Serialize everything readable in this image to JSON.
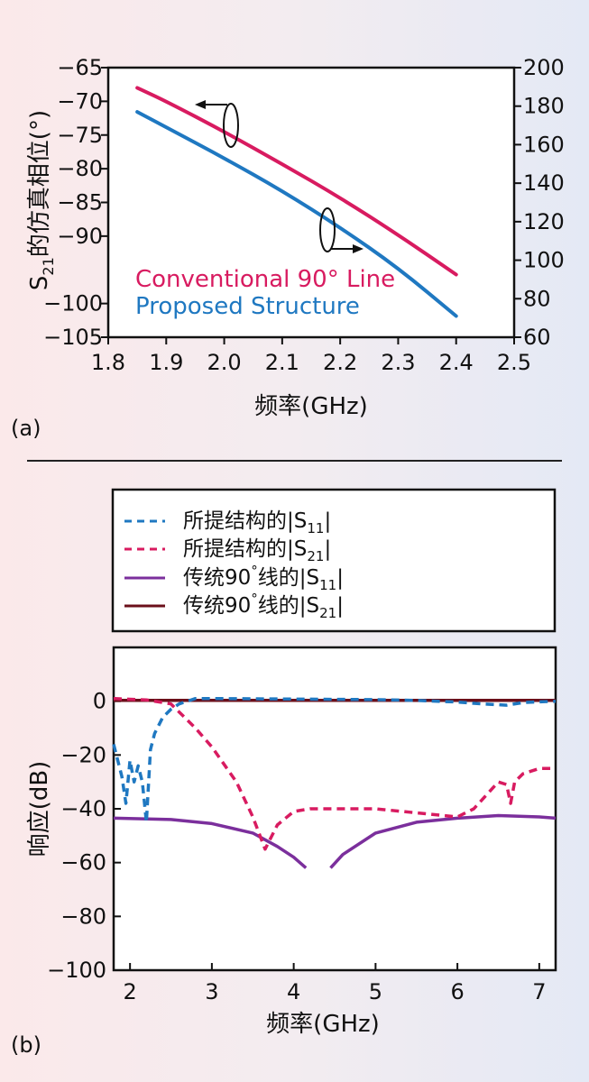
{
  "chart_data": [
    {
      "panel_label": "(a)",
      "type": "line",
      "xlabel": "频率(GHz)",
      "ylabel_left": {
        "pre": "S",
        "sub": "21",
        "post": "的仿真相位(°)"
      },
      "xlim": [
        1.8,
        2.5
      ],
      "ylim_left": [
        -105,
        -65
      ],
      "ylim_right": [
        60,
        200
      ],
      "xticks": [
        1.8,
        1.9,
        2.0,
        2.1,
        2.2,
        2.3,
        2.4,
        2.5
      ],
      "xtick_labels": [
        "1.8",
        "1.9",
        "2.0",
        "2.1",
        "2.2",
        "2.3",
        "2.4",
        "2.5"
      ],
      "yticks_left": [
        -65,
        -70,
        -75,
        -80,
        -85,
        -90,
        -100,
        -105
      ],
      "ytick_labels_left": [
        "−65",
        "−70",
        "−75",
        "−80",
        "−85",
        "−90",
        "−100",
        "−105"
      ],
      "yticks_right": [
        200,
        180,
        160,
        140,
        120,
        100,
        80,
        60
      ],
      "ytick_labels_right": [
        "200",
        "180",
        "160",
        "140",
        "120",
        "100",
        "80",
        "60"
      ],
      "series": [
        {
          "name": "Conventional 90° Line",
          "color": "#d81b60",
          "axis": "left",
          "x": [
            1.85,
            1.9,
            2.0,
            2.1,
            2.2,
            2.3,
            2.4
          ],
          "y": [
            -68.0,
            -70.0,
            -74.5,
            -79.3,
            -84.3,
            -89.8,
            -95.7
          ]
        },
        {
          "name": "Proposed Structure",
          "color": "#1f78c1",
          "axis": "right",
          "x": [
            1.85,
            1.9,
            2.0,
            2.1,
            2.2,
            2.3,
            2.4
          ],
          "y": [
            177,
            169,
            153,
            136,
            117,
            96,
            71
          ]
        }
      ],
      "grid": false
    },
    {
      "panel_label": "(b)",
      "type": "line",
      "xlabel": "频率(GHz)",
      "ylabel": "响应(dB)",
      "xlim": [
        1.8,
        7.2
      ],
      "ylim": [
        -100,
        20
      ],
      "xticks": [
        2,
        3,
        4,
        5,
        6,
        7
      ],
      "xtick_labels": [
        "2",
        "3",
        "4",
        "5",
        "6",
        "7"
      ],
      "yticks": [
        0,
        -20,
        -40,
        -60,
        -80,
        -100
      ],
      "ytick_labels": [
        "0",
        "−20",
        "−40",
        "−60",
        "−80",
        "−100"
      ],
      "legend_position": "above plot",
      "series": [
        {
          "name": {
            "pre": "所提结构的|S",
            "sub": "11",
            "post": "|"
          },
          "color": "#1f78c1",
          "style": "dashed",
          "x": [
            1.8,
            1.9,
            1.95,
            2.0,
            2.05,
            2.1,
            2.15,
            2.2,
            2.25,
            2.3,
            2.4,
            2.5,
            2.6,
            2.7,
            2.8,
            3.0,
            4.0,
            5.0,
            5.5,
            6.0,
            6.3,
            6.6,
            6.8,
            7.2
          ],
          "y": [
            -16,
            -28,
            -38,
            -22,
            -30,
            -24,
            -30,
            -45,
            -18,
            -12,
            -6,
            -3,
            -1,
            0,
            1,
            1,
            0.8,
            0.6,
            0.3,
            -0.3,
            -1,
            -1.5,
            -0.5,
            0
          ]
        },
        {
          "name": {
            "pre": "所提结构的|S",
            "sub": "21",
            "post": "|"
          },
          "color": "#d81b60",
          "style": "dashed",
          "x": [
            1.8,
            2.2,
            2.5,
            2.8,
            3.0,
            3.3,
            3.5,
            3.65,
            3.8,
            4.0,
            4.2,
            4.5,
            5.0,
            5.5,
            6.0,
            6.2,
            6.5,
            6.6,
            6.65,
            6.7,
            6.8,
            7.0,
            7.2
          ],
          "y": [
            1,
            0.5,
            -1,
            -10,
            -17,
            -30,
            -43,
            -55,
            -46,
            -41,
            -40,
            -40,
            -40,
            -41.5,
            -43,
            -40,
            -30,
            -31,
            -38,
            -30,
            -27,
            -25,
            -25
          ]
        },
        {
          "name": {
            "pre": "传统90",
            "sup": "°",
            "post": "线的|S",
            "sub": "11",
            "post2": "|"
          },
          "color": "#7b2f9c",
          "style": "solid",
          "x": [
            1.8,
            2.5,
            3.0,
            3.5,
            3.8,
            4.0,
            4.15,
            null,
            4.45,
            4.6,
            5.0,
            5.5,
            6.0,
            6.5,
            7.0,
            7.2
          ],
          "y": [
            -43.5,
            -44,
            -45.5,
            -49,
            -54,
            -58,
            -62,
            null,
            -62,
            -57,
            -49,
            -45,
            -43.5,
            -42.5,
            -43,
            -43.5
          ]
        },
        {
          "name": {
            "pre": "传统90",
            "sup": "°",
            "post": "线的|S",
            "sub": "21",
            "post2": "|"
          },
          "color": "#6b0f1a",
          "style": "solid",
          "x": [
            1.8,
            7.2
          ],
          "y": [
            0.3,
            0.3
          ]
        }
      ],
      "grid": false
    }
  ]
}
